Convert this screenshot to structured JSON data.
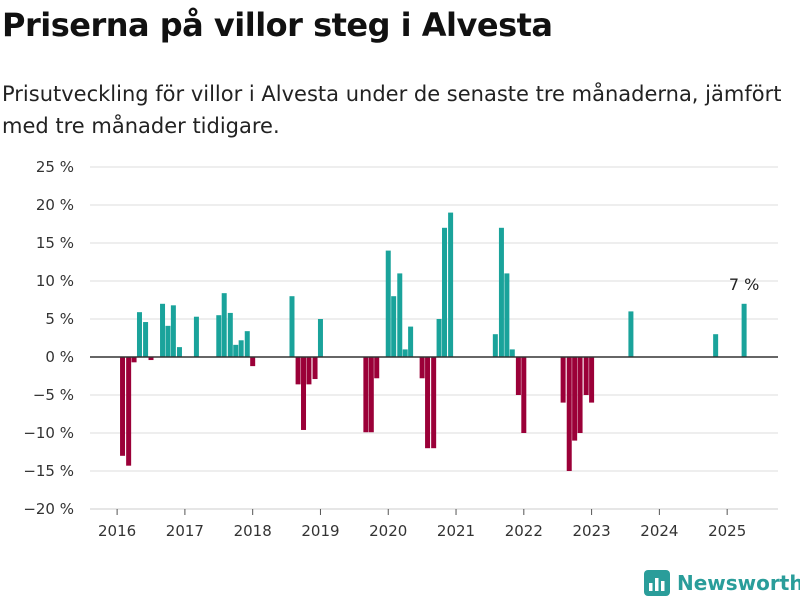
{
  "title": "Priserna på villor steg i Alvesta",
  "subtitle": "Prisutveckling för villor i Alvesta under de senaste tre månaderna, jämfört med tre månader tidigare.",
  "brand": "Newsworthy",
  "colors": {
    "positive": "#1aa39b",
    "negative": "#9b0038",
    "grid": "#dddddd",
    "zero_line": "#333333",
    "brand": "#2a9d9a"
  },
  "chart_data": {
    "type": "bar",
    "ylim": [
      -20,
      25
    ],
    "yticks": [
      25,
      20,
      15,
      10,
      5,
      0,
      -5,
      -10,
      -15,
      -20
    ],
    "ytick_labels": [
      "25 %",
      "20 %",
      "15 %",
      "10 %",
      "5 %",
      "0 %",
      "−5 %",
      "−10 %",
      "−15 %",
      "−20 %"
    ],
    "xlim": [
      2015.6,
      2025.75
    ],
    "xticks": [
      2016,
      2017,
      2018,
      2019,
      2020,
      2021,
      2022,
      2023,
      2024,
      2025
    ],
    "xtick_labels": [
      "2016",
      "2017",
      "2018",
      "2019",
      "2020",
      "2021",
      "2022",
      "2023",
      "2024",
      "2025"
    ],
    "grid": true,
    "annotation": {
      "text": "7 %",
      "x": 2025.25,
      "y": 7
    },
    "points": [
      {
        "x": 2016.08,
        "y": -13
      },
      {
        "x": 2016.17,
        "y": -14.3
      },
      {
        "x": 2016.25,
        "y": -0.7
      },
      {
        "x": 2016.33,
        "y": 5.9
      },
      {
        "x": 2016.42,
        "y": 4.6
      },
      {
        "x": 2016.5,
        "y": -0.4
      },
      {
        "x": 2016.67,
        "y": 7
      },
      {
        "x": 2016.75,
        "y": 4.1
      },
      {
        "x": 2016.83,
        "y": 6.8
      },
      {
        "x": 2016.92,
        "y": 1.3
      },
      {
        "x": 2017.17,
        "y": 5.3
      },
      {
        "x": 2017.5,
        "y": 5.5
      },
      {
        "x": 2017.58,
        "y": 8.4
      },
      {
        "x": 2017.67,
        "y": 5.8
      },
      {
        "x": 2017.75,
        "y": 1.6
      },
      {
        "x": 2017.83,
        "y": 2.2
      },
      {
        "x": 2017.92,
        "y": 3.4
      },
      {
        "x": 2018.0,
        "y": -1.2
      },
      {
        "x": 2018.58,
        "y": 8
      },
      {
        "x": 2018.67,
        "y": -3.6
      },
      {
        "x": 2018.75,
        "y": -9.6
      },
      {
        "x": 2018.83,
        "y": -3.6
      },
      {
        "x": 2018.92,
        "y": -2.9
      },
      {
        "x": 2019.0,
        "y": 5
      },
      {
        "x": 2019.67,
        "y": -9.9
      },
      {
        "x": 2019.75,
        "y": -9.9
      },
      {
        "x": 2019.83,
        "y": -2.8
      },
      {
        "x": 2020.0,
        "y": 14
      },
      {
        "x": 2020.08,
        "y": 8
      },
      {
        "x": 2020.17,
        "y": 11
      },
      {
        "x": 2020.25,
        "y": 1
      },
      {
        "x": 2020.33,
        "y": 4
      },
      {
        "x": 2020.5,
        "y": -2.8
      },
      {
        "x": 2020.58,
        "y": -12
      },
      {
        "x": 2020.67,
        "y": -12
      },
      {
        "x": 2020.75,
        "y": 5
      },
      {
        "x": 2020.83,
        "y": 17
      },
      {
        "x": 2020.92,
        "y": 19
      },
      {
        "x": 2021.58,
        "y": 3
      },
      {
        "x": 2021.67,
        "y": 17
      },
      {
        "x": 2021.75,
        "y": 11
      },
      {
        "x": 2021.83,
        "y": 1
      },
      {
        "x": 2021.92,
        "y": -5
      },
      {
        "x": 2022.0,
        "y": -10
      },
      {
        "x": 2022.58,
        "y": -6
      },
      {
        "x": 2022.67,
        "y": -15
      },
      {
        "x": 2022.75,
        "y": -11
      },
      {
        "x": 2022.83,
        "y": -10
      },
      {
        "x": 2022.92,
        "y": -5
      },
      {
        "x": 2023.0,
        "y": -6
      },
      {
        "x": 2023.58,
        "y": 6
      },
      {
        "x": 2024.83,
        "y": 3
      },
      {
        "x": 2025.25,
        "y": 7
      }
    ]
  }
}
